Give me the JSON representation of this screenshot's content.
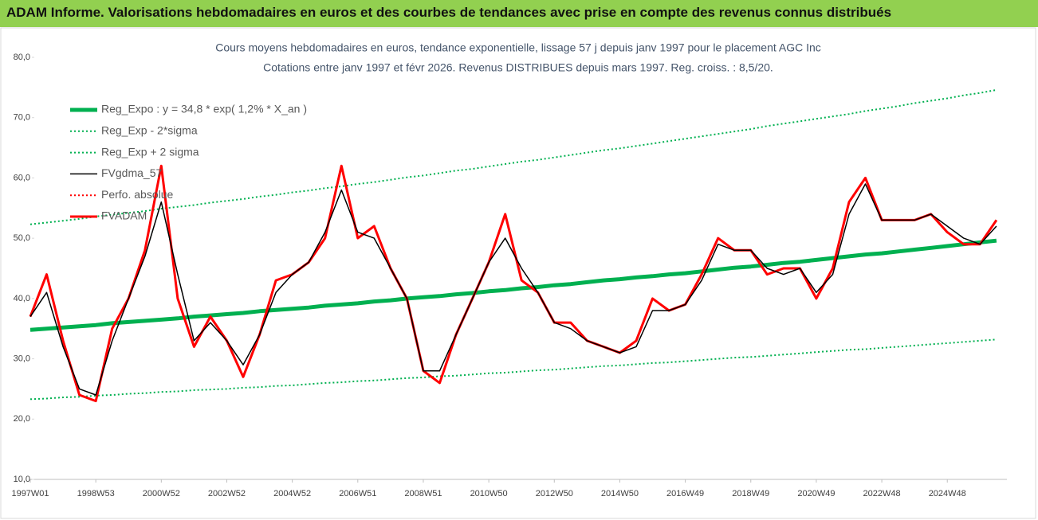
{
  "header": {
    "title": "ADAM Informe. Valorisations hebdomadaires en euros et des courbes de tendances avec prise en compte des revenus connus distribués"
  },
  "chart_data": {
    "type": "line",
    "title": "Cours moyens hebdomadaires en euros, tendance exponentielle, lissage 57 j depuis janv 1997 pour le placement AGC Inc",
    "subtitle": "Cotations entre janv 1997 et févr 2026. Revenus DISTRIBUES depuis mars 1997. Reg. croiss. : 8,5/20.",
    "categories": [
      "1997W01",
      null,
      null,
      null,
      "1998W53",
      null,
      null,
      null,
      "2000W52",
      null,
      null,
      null,
      "2002W52",
      null,
      null,
      null,
      "2004W52",
      null,
      null,
      null,
      "2006W51",
      null,
      null,
      null,
      "2008W51",
      null,
      null,
      null,
      "2010W50",
      null,
      null,
      null,
      "2012W50",
      null,
      null,
      null,
      "2014W50",
      null,
      null,
      null,
      "2016W49",
      null,
      null,
      null,
      "2018W49",
      null,
      null,
      null,
      "2020W49",
      null,
      null,
      null,
      "2022W48",
      null,
      null,
      null,
      "2024W48",
      null,
      null,
      null
    ],
    "ylim": [
      10,
      80
    ],
    "yticks": [
      {
        "value": 10,
        "label": "10,0"
      },
      {
        "value": 20,
        "label": "20,0"
      },
      {
        "value": 30,
        "label": "30,0"
      },
      {
        "value": 40,
        "label": "40,0"
      },
      {
        "value": 50,
        "label": "50,0"
      },
      {
        "value": 60,
        "label": "60,0"
      },
      {
        "value": 70,
        "label": "70,0"
      },
      {
        "value": 80,
        "label": "80,0"
      }
    ],
    "legend": "upper left",
    "series": [
      {
        "name": "Reg_Expo : y = 34,8 * exp( 1,2% *  X_an )",
        "color": "#00b050",
        "style": "solid",
        "width": 5,
        "values": [
          34.8,
          35.0,
          35.2,
          35.4,
          35.6,
          35.9,
          36.1,
          36.3,
          36.5,
          36.7,
          37.0,
          37.2,
          37.4,
          37.6,
          37.9,
          38.1,
          38.3,
          38.5,
          38.8,
          39.0,
          39.2,
          39.5,
          39.7,
          40.0,
          40.2,
          40.4,
          40.7,
          40.9,
          41.2,
          41.4,
          41.7,
          41.9,
          42.2,
          42.4,
          42.7,
          43.0,
          43.2,
          43.5,
          43.7,
          44.0,
          44.2,
          44.5,
          44.8,
          45.1,
          45.3,
          45.6,
          45.9,
          46.1,
          46.4,
          46.7,
          47.0,
          47.3,
          47.5,
          47.8,
          48.1,
          48.4,
          48.7,
          49.0,
          49.3,
          49.6
        ]
      },
      {
        "name": "Reg_Exp - 2*sigma",
        "color": "#00b050",
        "style": "dotted",
        "width": 2,
        "values": [
          23.3,
          23.4,
          23.6,
          23.7,
          23.9,
          24.0,
          24.2,
          24.3,
          24.5,
          24.6,
          24.8,
          24.9,
          25.0,
          25.2,
          25.3,
          25.5,
          25.6,
          25.8,
          26.0,
          26.1,
          26.3,
          26.4,
          26.6,
          26.8,
          26.9,
          27.1,
          27.2,
          27.4,
          27.6,
          27.7,
          27.9,
          28.1,
          28.2,
          28.4,
          28.6,
          28.8,
          28.9,
          29.1,
          29.3,
          29.4,
          29.6,
          29.8,
          30.0,
          30.2,
          30.3,
          30.5,
          30.7,
          30.9,
          31.1,
          31.3,
          31.5,
          31.6,
          31.8,
          32.0,
          32.2,
          32.4,
          32.6,
          32.8,
          33.0,
          33.2
        ]
      },
      {
        "name": "Reg_Exp + 2 sigma",
        "color": "#00b050",
        "style": "dotted",
        "width": 2,
        "values": [
          52.3,
          52.6,
          52.9,
          53.2,
          53.6,
          53.9,
          54.2,
          54.5,
          54.9,
          55.2,
          55.5,
          55.9,
          56.2,
          56.5,
          56.9,
          57.2,
          57.6,
          57.9,
          58.3,
          58.6,
          59.0,
          59.3,
          59.7,
          60.1,
          60.4,
          60.8,
          61.2,
          61.5,
          61.9,
          62.3,
          62.7,
          63.0,
          63.4,
          63.8,
          64.2,
          64.6,
          64.9,
          65.3,
          65.7,
          66.1,
          66.5,
          66.9,
          67.3,
          67.7,
          68.1,
          68.6,
          69.0,
          69.4,
          69.8,
          70.2,
          70.6,
          71.1,
          71.5,
          71.9,
          72.4,
          72.8,
          73.2,
          73.7,
          74.1,
          74.6
        ]
      },
      {
        "name": "FVADAM",
        "color": "#ff0000",
        "style": "solid",
        "width": 3,
        "values": [
          37,
          44,
          33,
          24,
          23,
          35,
          40,
          48,
          62,
          40,
          32,
          37,
          33,
          27,
          34,
          43,
          44,
          46,
          50,
          62,
          50,
          52,
          45,
          40,
          28,
          26,
          34,
          40,
          46,
          54,
          43,
          41,
          36,
          36,
          33,
          32,
          31,
          33,
          40,
          38,
          39,
          44,
          50,
          48,
          48,
          44,
          45,
          45,
          40,
          45,
          56,
          60,
          53,
          53,
          53,
          54,
          51,
          49,
          49,
          53
        ]
      },
      {
        "name": "FVgdma_57",
        "color": "#000000",
        "style": "solid",
        "width": 1.5,
        "values": [
          37,
          41,
          32,
          25,
          24,
          33,
          40,
          47,
          56,
          44,
          33,
          36,
          33,
          29,
          34,
          41,
          44,
          46,
          51,
          58,
          51,
          50,
          45,
          40,
          28,
          28,
          34,
          40,
          46,
          50,
          45,
          41,
          36,
          35,
          33,
          32,
          31,
          32,
          38,
          38,
          39,
          43,
          49,
          48,
          48,
          45,
          44,
          45,
          41,
          44,
          54,
          59,
          53,
          53,
          53,
          54,
          52,
          50,
          49,
          52
        ]
      }
    ],
    "legend_only": [
      {
        "name": "Perfo. absolue",
        "color": "#ff0000",
        "style": "dotted"
      }
    ]
  }
}
